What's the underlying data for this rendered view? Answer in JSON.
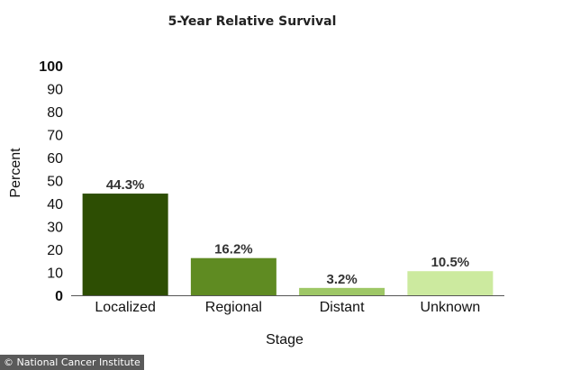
{
  "chart_data": {
    "type": "bar",
    "title": "5-Year Relative Survival",
    "xlabel": "Stage",
    "ylabel": "Percent",
    "categories": [
      "Localized",
      "Regional",
      "Distant",
      "Unknown"
    ],
    "values": [
      44.3,
      16.2,
      3.2,
      10.5
    ],
    "data_labels": [
      "44.3%",
      "16.2%",
      "3.2%",
      "10.5%"
    ],
    "colors": [
      "#2d4e03",
      "#5f8b22",
      "#9ec766",
      "#ccea9f"
    ],
    "ylim": [
      0,
      100
    ],
    "yticks": [
      0,
      10,
      20,
      30,
      40,
      50,
      60,
      70,
      80,
      90,
      100
    ],
    "grid": false,
    "legend": "none"
  },
  "credit": "© National Cancer Institute"
}
